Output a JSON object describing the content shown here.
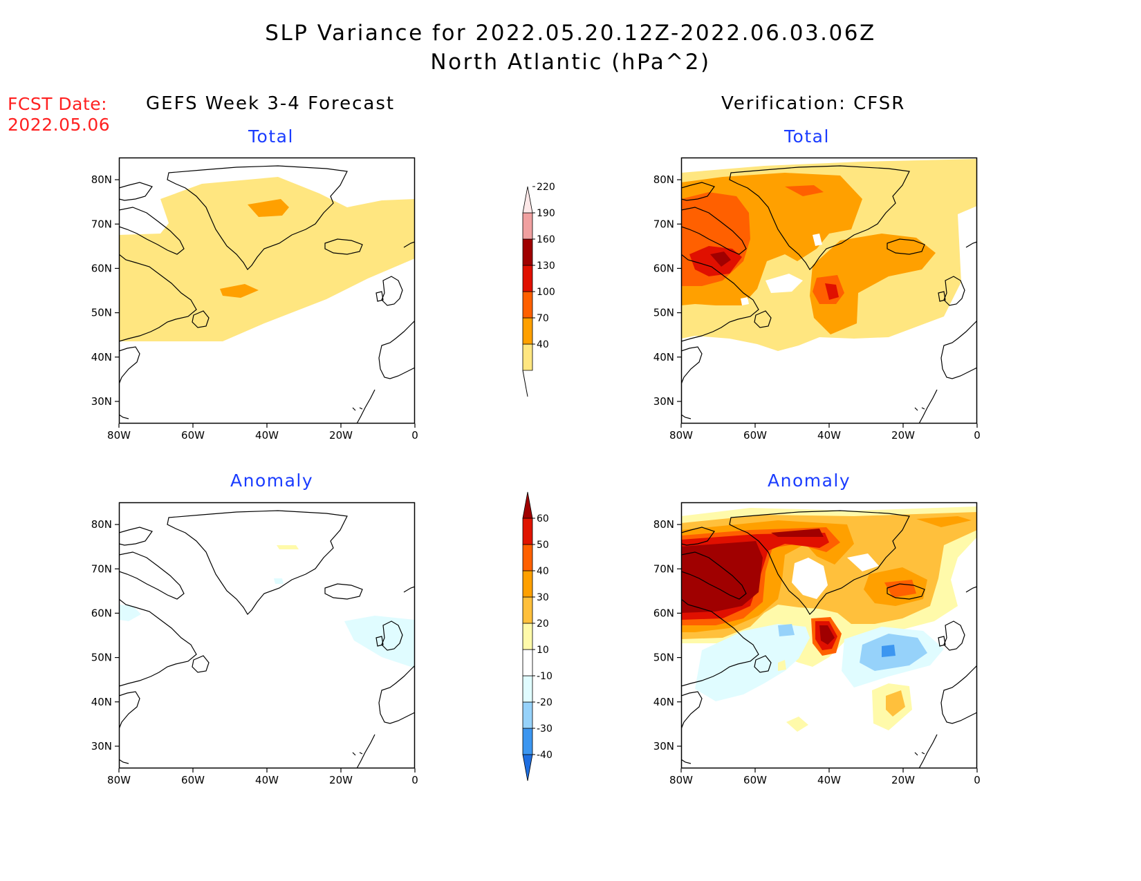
{
  "title": {
    "line1": "SLP Variance for 2022.05.20.12Z-2022.06.03.06Z",
    "line2": "North Atlantic (hPa^2)"
  },
  "fcst": {
    "label": "FCST Date:",
    "date": "2022.05.06"
  },
  "columns": {
    "left": "GEFS Week 3-4 Forecast",
    "right": "Verification: CFSR"
  },
  "panels": {
    "top_left": "Total",
    "top_right": "Total",
    "bottom_left": "Anomaly",
    "bottom_right": "Anomaly"
  },
  "axes": {
    "lat_labels": [
      "80N",
      "70N",
      "60N",
      "50N",
      "40N",
      "30N"
    ],
    "lon_labels": [
      "80W",
      "60W",
      "40W",
      "20W",
      "0"
    ]
  },
  "colorbar_total": {
    "levels": [
      "40",
      "70",
      "100",
      "130",
      "160",
      "190",
      "220"
    ],
    "colors": [
      "#ffe680",
      "#ffa000",
      "#ff6000",
      "#e01000",
      "#a00000",
      "#f0a0a0",
      "#fde8e8"
    ]
  },
  "colorbar_anomaly": {
    "levels": [
      "-40",
      "-30",
      "-20",
      "-10",
      "10",
      "20",
      "30",
      "40",
      "50",
      "60"
    ],
    "colors": [
      "#1e6ee0",
      "#3c96f0",
      "#96d2fa",
      "#e0fcff",
      "#ffffff",
      "#fffaaa",
      "#ffc03c",
      "#ffa000",
      "#ff6000",
      "#e01400",
      "#a00000"
    ]
  },
  "shade_colors": {
    "light_yellow": "#ffe680",
    "orange": "#ffa000",
    "dark_orange": "#ff6000",
    "red": "#e01000",
    "dark_red": "#a00000",
    "pale_yellow": "#fffaaa",
    "light_orange": "#ffc03c",
    "pale_cyan": "#e0fcff",
    "light_blue": "#96d2fa",
    "mid_blue": "#3c96f0",
    "deep_blue": "#1e6ee0"
  }
}
